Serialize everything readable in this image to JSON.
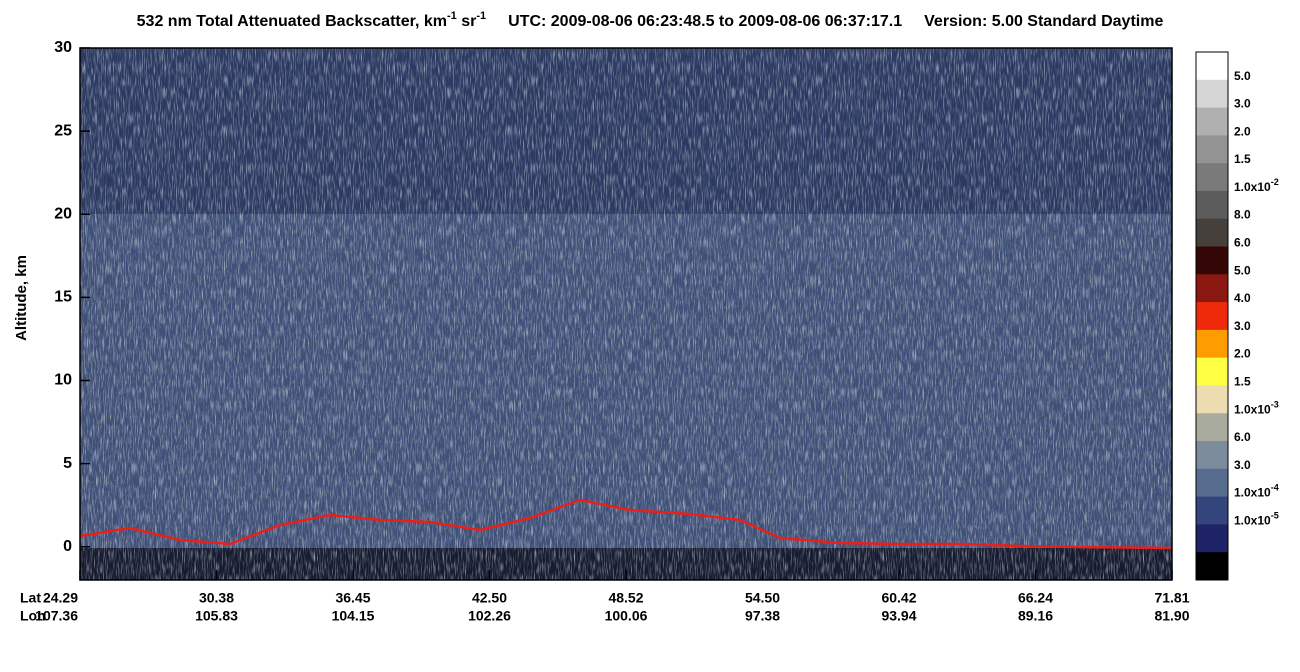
{
  "chart_data": {
    "type": "curtain",
    "title": {
      "main": "532 nm Total Attenuated Backscatter, km",
      "exp1": "-1",
      "unit2": " sr",
      "exp2": "-1",
      "utc": "UTC:  2009-08-06 06:23:48.5  to  2009-08-06 06:37:17.1",
      "version": "Version: 5.00  Standard  Daytime"
    },
    "y_label": "Altitude, km",
    "ylim": [
      -2,
      30
    ],
    "yticks": [
      0,
      5,
      10,
      15,
      20,
      25,
      30
    ],
    "x_rows": [
      "Lat",
      "Lon"
    ],
    "lat": [
      "24.29",
      "30.38",
      "36.45",
      "42.50",
      "48.52",
      "54.50",
      "60.42",
      "66.24",
      "71.81"
    ],
    "lon": [
      "107.36",
      "105.83",
      "104.15",
      "102.26",
      "100.06",
      "97.38",
      "93.94",
      "89.16",
      "81.90"
    ],
    "colorbar": {
      "colors": [
        "#ffffff",
        "#d6d6d6",
        "#b0b0b0",
        "#939393",
        "#7a7a7a",
        "#5c5c5c",
        "#45403c",
        "#350606",
        "#8a1810",
        "#ee2a0a",
        "#ff9c00",
        "#ffff44",
        "#ecdcb0",
        "#a9ab9e",
        "#7c8c9c",
        "#566c8e",
        "#34447c",
        "#1e2266",
        "#000000"
      ],
      "labels": [
        {
          "base": "5.0"
        },
        {
          "base": "3.0"
        },
        {
          "base": "2.0"
        },
        {
          "base": "1.5"
        },
        {
          "base": "1.0x10",
          "exp": "-2"
        },
        {
          "base": "8.0"
        },
        {
          "base": "6.0"
        },
        {
          "base": "5.0"
        },
        {
          "base": "4.0"
        },
        {
          "base": "3.0"
        },
        {
          "base": "2.0"
        },
        {
          "base": "1.5"
        },
        {
          "base": "1.0x10",
          "exp": "-3"
        },
        {
          "base": "6.0"
        },
        {
          "base": "3.0"
        },
        {
          "base": "1.0x10",
          "exp": "-4"
        },
        {
          "base": "1.0x10",
          "exp": "-5"
        }
      ]
    }
  }
}
